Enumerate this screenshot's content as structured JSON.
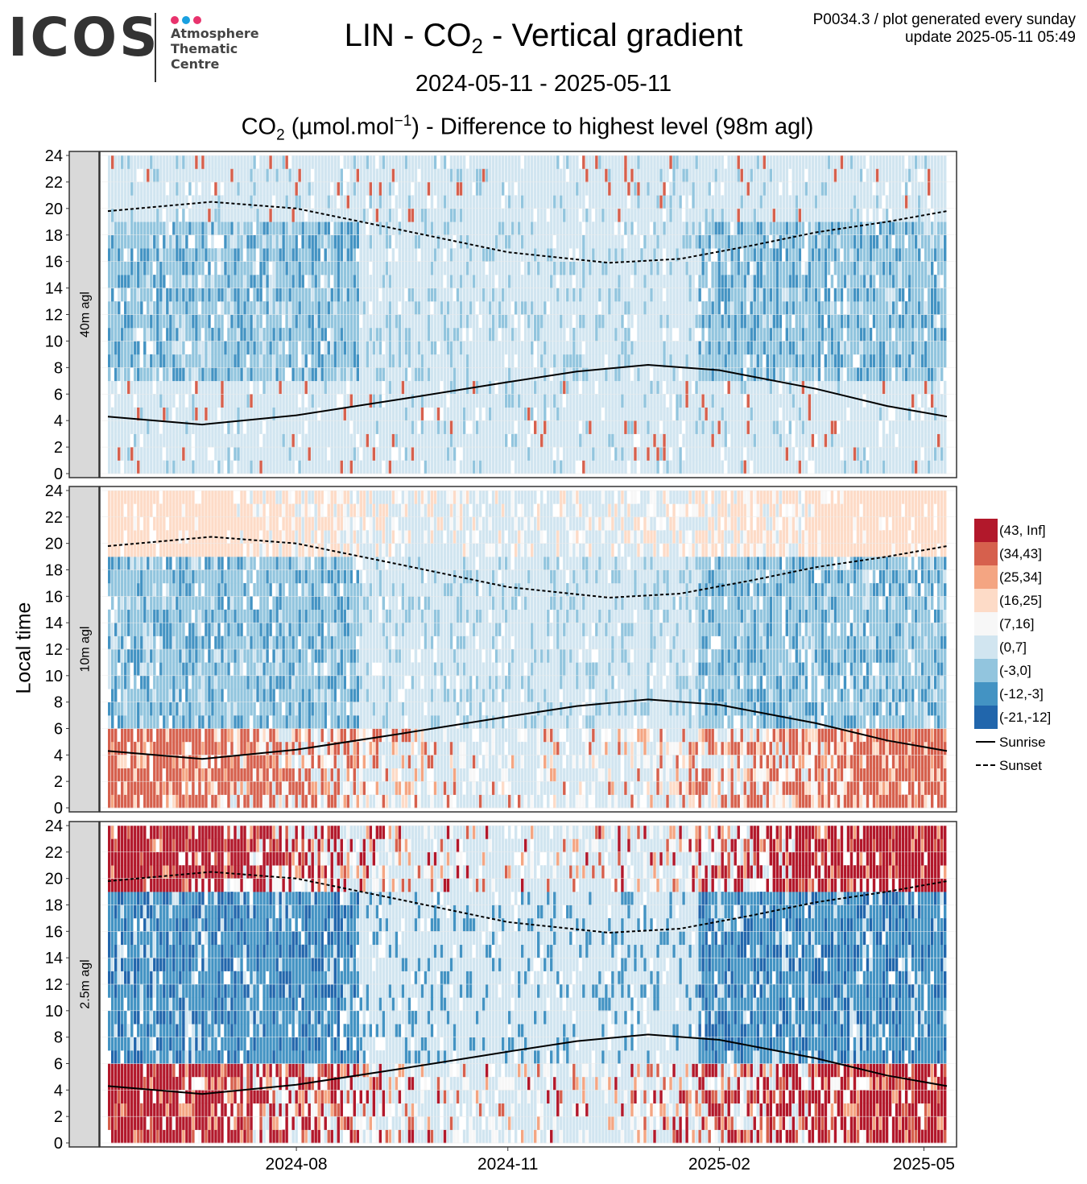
{
  "logo": {
    "text": "ICOS",
    "line1": "Atmosphere",
    "line2": "Thematic",
    "line3": "Centre",
    "dot_colors": [
      "#e8336d",
      "#1aa0e0",
      "#e8336d"
    ]
  },
  "title_parts": {
    "a": "LIN - CO",
    "sub": "2",
    "b": " - Vertical gradient"
  },
  "subtitle": "2024-05-11 - 2025-05-11",
  "units_title": {
    "a": "CO",
    "sub": "2",
    "b": " (µmol.mol",
    "sup": "−1",
    "c": ") - Difference to highest level (98m agl)"
  },
  "meta": {
    "line1": "P0034.3 / plot generated every sunday",
    "line2": "update  2025-05-11 05:49"
  },
  "chart_data": {
    "type": "heatmap",
    "ylabel": "Local time",
    "ylim": [
      0,
      24
    ],
    "yticks": [
      0,
      2,
      4,
      6,
      8,
      10,
      12,
      14,
      16,
      18,
      20,
      22,
      24
    ],
    "xlim": [
      "2024-05-11",
      "2025-05-11"
    ],
    "xticks": [
      {
        "label": "2024-08",
        "date": "2024-08-01"
      },
      {
        "label": "2024-11",
        "date": "2024-11-01"
      },
      {
        "label": "2025-02",
        "date": "2025-02-01"
      },
      {
        "label": "2025-05",
        "date": "2025-05-01"
      }
    ],
    "panels": [
      {
        "label": "40m agl",
        "bands": [
          {
            "from": 0,
            "to": 7,
            "value_class": 5
          },
          {
            "from": 7,
            "to": 19,
            "value_class": 6
          },
          {
            "from": 19,
            "to": 24,
            "value_class": 5
          }
        ]
      },
      {
        "label": "10m agl",
        "bands": [
          {
            "from": 0,
            "to": 6,
            "value_class": 1
          },
          {
            "from": 6,
            "to": 19,
            "value_class": 6
          },
          {
            "from": 19,
            "to": 24,
            "value_class": 3
          }
        ]
      },
      {
        "label": "2.5m agl",
        "bands": [
          {
            "from": 0,
            "to": 6,
            "value_class": 0
          },
          {
            "from": 6,
            "to": 19,
            "value_class": 7
          },
          {
            "from": 19,
            "to": 24,
            "value_class": 0
          }
        ]
      }
    ],
    "classes": [
      {
        "label": "(43, Inf]",
        "color": "#b2182b"
      },
      {
        "label": "(34,43]",
        "color": "#d6604d"
      },
      {
        "label": "(25,34]",
        "color": "#f4a582"
      },
      {
        "label": "(16,25]",
        "color": "#fddbc7"
      },
      {
        "label": "(7,16]",
        "color": "#f7f7f7"
      },
      {
        "label": "(0,7]",
        "color": "#d1e5f0"
      },
      {
        "label": "(-3,0]",
        "color": "#92c5de"
      },
      {
        "label": "(-12,-3]",
        "color": "#4393c3"
      },
      {
        "label": "(-21,-12]",
        "color": "#2166ac"
      }
    ],
    "lines": [
      {
        "name": "Sunrise",
        "style": "solid",
        "points": [
          [
            "2024-05-11",
            4.3
          ],
          [
            "2024-06-21",
            3.7
          ],
          [
            "2024-08-01",
            4.4
          ],
          [
            "2024-09-15",
            5.6
          ],
          [
            "2024-11-01",
            6.9
          ],
          [
            "2024-12-01",
            7.7
          ],
          [
            "2025-01-01",
            8.2
          ],
          [
            "2025-02-01",
            7.8
          ],
          [
            "2025-03-15",
            6.4
          ],
          [
            "2025-04-15",
            5.1
          ],
          [
            "2025-05-11",
            4.3
          ]
        ]
      },
      {
        "name": "Sunset",
        "style": "dashed",
        "points": [
          [
            "2024-05-11",
            19.8
          ],
          [
            "2024-06-25",
            20.5
          ],
          [
            "2024-08-01",
            20.0
          ],
          [
            "2024-09-15",
            18.4
          ],
          [
            "2024-11-01",
            16.7
          ],
          [
            "2024-12-15",
            15.9
          ],
          [
            "2025-01-15",
            16.2
          ],
          [
            "2025-02-15",
            17.2
          ],
          [
            "2025-03-15",
            18.2
          ],
          [
            "2025-04-15",
            19.0
          ],
          [
            "2025-05-11",
            19.8
          ]
        ]
      }
    ]
  }
}
